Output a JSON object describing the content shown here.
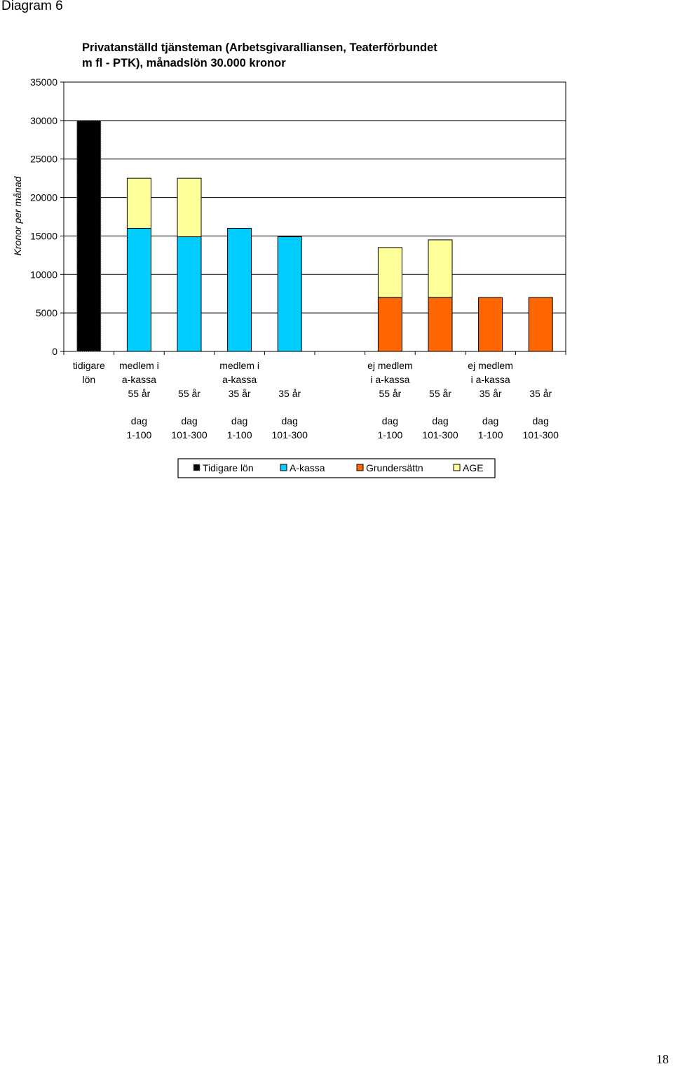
{
  "page": {
    "doc_label": "Diagram 6",
    "page_number": "18"
  },
  "chart_data": {
    "type": "bar",
    "stacked": true,
    "title_lines": [
      "Privatanställd tjänsteman  (Arbetsgivaralliansen, Teaterförbundet",
      "m fl - PTK),  månadslön 30.000 kronor"
    ],
    "ylabel": "Kronor per månad",
    "ylim": [
      0,
      35000
    ],
    "yticks": [
      0,
      5000,
      10000,
      15000,
      20000,
      25000,
      30000,
      35000
    ],
    "grid": true,
    "legend_position": "bottom",
    "categories": [
      [
        "tidigare",
        "lön"
      ],
      [
        "medlem i",
        "a-kassa",
        "55 år",
        "",
        "dag",
        "1-100"
      ],
      [
        "",
        "",
        "55 år",
        "",
        "dag",
        "101-300"
      ],
      [
        "medlem i",
        "a-kassa",
        "35 år",
        "",
        "dag",
        "1-100"
      ],
      [
        "",
        "",
        "35 år",
        "",
        "dag",
        "101-300"
      ],
      [],
      [
        "ej medlem",
        "i a-kassa",
        "55 år",
        "",
        "dag",
        "1-100"
      ],
      [
        "",
        "",
        "55 år",
        "",
        "dag",
        "101-300"
      ],
      [
        "ej medlem",
        "i a-kassa",
        "35 år",
        "",
        "dag",
        "1-100"
      ],
      [
        "",
        "",
        "35 år",
        "",
        "dag",
        "101-300"
      ]
    ],
    "series": [
      {
        "name": "Tidigare lön",
        "color": "#000000",
        "values": [
          30000,
          0,
          0,
          0,
          0,
          0,
          0,
          0,
          0,
          0
        ]
      },
      {
        "name": "A-kassa",
        "color": "#00CCFF",
        "values": [
          0,
          16000,
          14900,
          16000,
          14900,
          0,
          0,
          0,
          0,
          0
        ]
      },
      {
        "name": "Grundersättn",
        "color": "#FF6600",
        "values": [
          0,
          0,
          0,
          0,
          0,
          0,
          7000,
          7000,
          7000,
          7000
        ]
      },
      {
        "name": "AGE",
        "color": "#FFFF99",
        "values": [
          0,
          6500,
          7600,
          0,
          0,
          0,
          6500,
          7500,
          0,
          0
        ]
      }
    ]
  }
}
